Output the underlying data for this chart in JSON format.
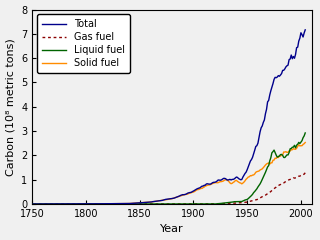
{
  "xlabel": "Year",
  "ylabel": "Carbon (10⁸ metric tons)",
  "xlim": [
    1750,
    2010
  ],
  "ylim": [
    0,
    8
  ],
  "xticks": [
    1750,
    1800,
    1850,
    1900,
    1950,
    2000
  ],
  "yticks": [
    0,
    1,
    2,
    3,
    4,
    5,
    6,
    7,
    8
  ],
  "legend": [
    "Total",
    "Gas fuel",
    "Liquid fuel",
    "Solid fuel"
  ],
  "colors": {
    "total": "#00008B",
    "gas": "#8B0000",
    "liquid": "#006400",
    "solid": "#FF8C00"
  },
  "figsize": [
    3.2,
    2.4
  ],
  "dpi": 100,
  "font_size": 8,
  "total_keypoints": [
    [
      1751,
      0.0
    ],
    [
      1800,
      0.003
    ],
    [
      1840,
      0.02
    ],
    [
      1860,
      0.08
    ],
    [
      1880,
      0.22
    ],
    [
      1900,
      0.52
    ],
    [
      1910,
      0.78
    ],
    [
      1920,
      0.92
    ],
    [
      1930,
      1.05
    ],
    [
      1935,
      0.95
    ],
    [
      1940,
      1.1
    ],
    [
      1945,
      1.0
    ],
    [
      1950,
      1.4
    ],
    [
      1960,
      2.6
    ],
    [
      1970,
      4.2
    ],
    [
      1975,
      5.2
    ],
    [
      1980,
      5.3
    ],
    [
      1985,
      5.5
    ],
    [
      1990,
      6.1
    ],
    [
      1995,
      6.4
    ],
    [
      2000,
      6.8
    ],
    [
      2004,
      7.2
    ]
  ],
  "solid_keypoints": [
    [
      1751,
      0.0
    ],
    [
      1800,
      0.003
    ],
    [
      1840,
      0.02
    ],
    [
      1860,
      0.08
    ],
    [
      1880,
      0.22
    ],
    [
      1900,
      0.5
    ],
    [
      1910,
      0.72
    ],
    [
      1920,
      0.86
    ],
    [
      1930,
      0.97
    ],
    [
      1935,
      0.85
    ],
    [
      1940,
      0.98
    ],
    [
      1945,
      0.85
    ],
    [
      1950,
      1.05
    ],
    [
      1960,
      1.35
    ],
    [
      1970,
      1.65
    ],
    [
      1980,
      2.0
    ],
    [
      1990,
      2.2
    ],
    [
      2000,
      2.35
    ],
    [
      2004,
      2.5
    ]
  ],
  "liquid_keypoints": [
    [
      1751,
      0.0
    ],
    [
      1900,
      0.0
    ],
    [
      1910,
      0.0
    ],
    [
      1920,
      0.0
    ],
    [
      1925,
      0.02
    ],
    [
      1930,
      0.05
    ],
    [
      1940,
      0.1
    ],
    [
      1945,
      0.1
    ],
    [
      1950,
      0.2
    ],
    [
      1955,
      0.4
    ],
    [
      1960,
      0.7
    ],
    [
      1965,
      1.1
    ],
    [
      1970,
      1.6
    ],
    [
      1973,
      2.1
    ],
    [
      1975,
      2.2
    ],
    [
      1980,
      2.0
    ],
    [
      1985,
      1.9
    ],
    [
      1990,
      2.2
    ],
    [
      1995,
      2.3
    ],
    [
      2000,
      2.6
    ],
    [
      2004,
      2.9
    ]
  ],
  "gas_keypoints": [
    [
      1751,
      0.0
    ],
    [
      1900,
      0.0
    ],
    [
      1910,
      0.005
    ],
    [
      1920,
      0.01
    ],
    [
      1930,
      0.02
    ],
    [
      1940,
      0.04
    ],
    [
      1950,
      0.08
    ],
    [
      1960,
      0.2
    ],
    [
      1970,
      0.45
    ],
    [
      1980,
      0.8
    ],
    [
      1990,
      1.0
    ],
    [
      2000,
      1.15
    ],
    [
      2004,
      1.3
    ]
  ]
}
